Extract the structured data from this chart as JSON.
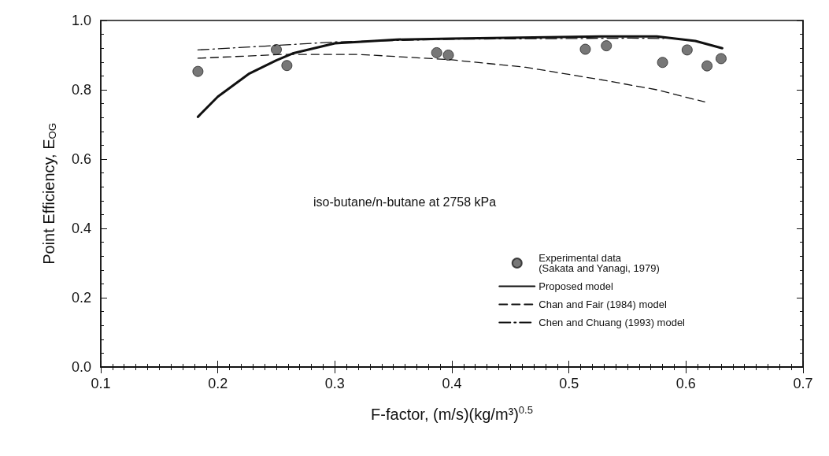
{
  "chart_data": {
    "type": "line",
    "xlabel": "F-factor, (m/s)(kg/m³)$^{0.5}$",
    "ylabel": "Point Efficiency, E$_{OG}$",
    "annotations": [
      "iso-butane/n-butane at 2758 kPa"
    ],
    "xlim": [
      0.1,
      0.7
    ],
    "xticks": [
      0.1,
      0.2,
      0.3,
      0.4,
      0.5,
      0.6,
      0.7
    ],
    "ylim": [
      0,
      1
    ],
    "yticks": [
      {
        "value": 0,
        "label": "0.0"
      },
      0.2,
      0.4,
      0.6,
      0.8,
      {
        "value": 1,
        "label": "1.0"
      }
    ],
    "grid": false,
    "legend": "bottom right",
    "series": [
      {
        "name": "Experimental data\n(Sakata and Yanagi, 1979)",
        "type": "scatter",
        "marker": "circle",
        "color": "#555555",
        "x": [
          0.183,
          0.25,
          0.259,
          0.387,
          0.397,
          0.514,
          0.532,
          0.58,
          0.601,
          0.618,
          0.63
        ],
        "values": [
          0.853,
          0.916,
          0.87,
          0.907,
          0.9,
          0.917,
          0.927,
          0.879,
          0.915,
          0.869,
          0.89
        ]
      },
      {
        "name": "Proposed model",
        "line_style": "solid",
        "color": "#111111",
        "x": [
          0.183,
          0.2,
          0.227,
          0.25,
          0.264,
          0.3,
          0.353,
          0.4,
          0.531,
          0.575,
          0.608,
          0.631
        ],
        "values": [
          0.722,
          0.78,
          0.847,
          0.885,
          0.905,
          0.934,
          0.945,
          0.948,
          0.954,
          0.954,
          0.941,
          0.92
        ]
      },
      {
        "name": "Chan and Fair (1984) model",
        "line_style": "dashed",
        "color": "#111111",
        "x": [
          0.183,
          0.254,
          0.321,
          0.398,
          0.463,
          0.531,
          0.575,
          0.616
        ],
        "values": [
          0.891,
          0.902,
          0.902,
          0.887,
          0.865,
          0.827,
          0.8,
          0.765
        ]
      },
      {
        "name": "Chen and Chuang (1993) model",
        "line_style": "dashdot",
        "color": "#111111",
        "x": [
          0.183,
          0.24,
          0.3,
          0.4,
          0.553,
          0.581
        ],
        "values": [
          0.915,
          0.926,
          0.938,
          0.946,
          0.949,
          0.948
        ]
      }
    ]
  }
}
